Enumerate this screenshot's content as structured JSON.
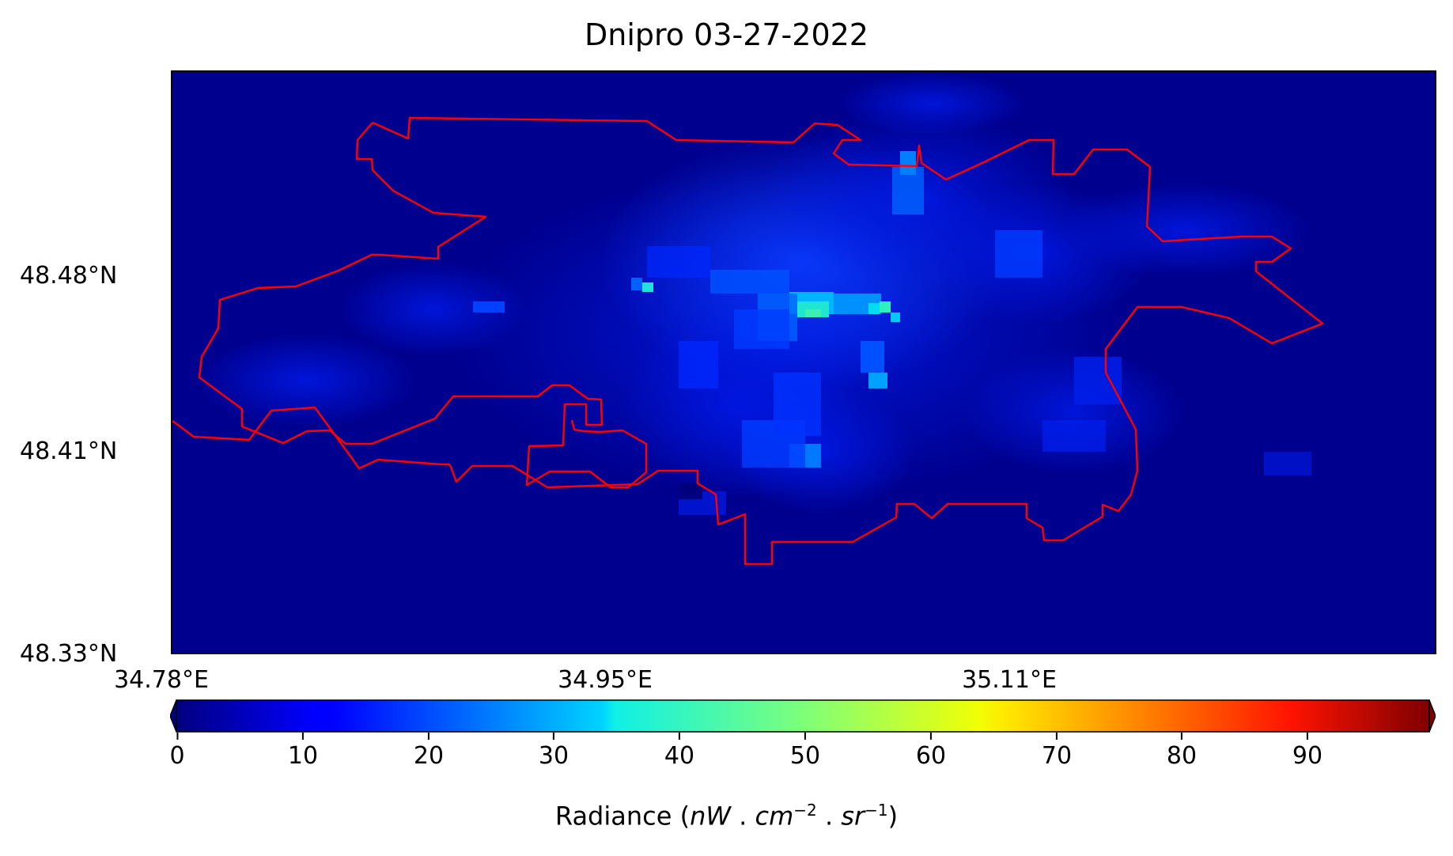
{
  "title": "Dnipro 03-27-2022",
  "map": {
    "city": "Dnipro",
    "date": "03-27-2022",
    "boundary_color": "#ff0000",
    "background_color": "#00008e",
    "y_ticks": [
      "48.48°N",
      "48.41°N",
      "48.33°N"
    ],
    "x_ticks": [
      "34.78°E",
      "34.95°E",
      "35.11°E"
    ]
  },
  "colorbar": {
    "colormap": "jet",
    "min": 0,
    "max": 100,
    "extend": "both",
    "ticks": [
      "0",
      "10",
      "20",
      "30",
      "40",
      "50",
      "60",
      "70",
      "80",
      "90"
    ],
    "label_prefix": "Radiance (",
    "label_unit_nw": "nW",
    "label_dot1": " . ",
    "label_unit_cm": "cm",
    "label_exp_cm": "−2",
    "label_dot2": " . ",
    "label_unit_sr": "sr",
    "label_exp_sr": "−1",
    "label_suffix": ")"
  }
}
